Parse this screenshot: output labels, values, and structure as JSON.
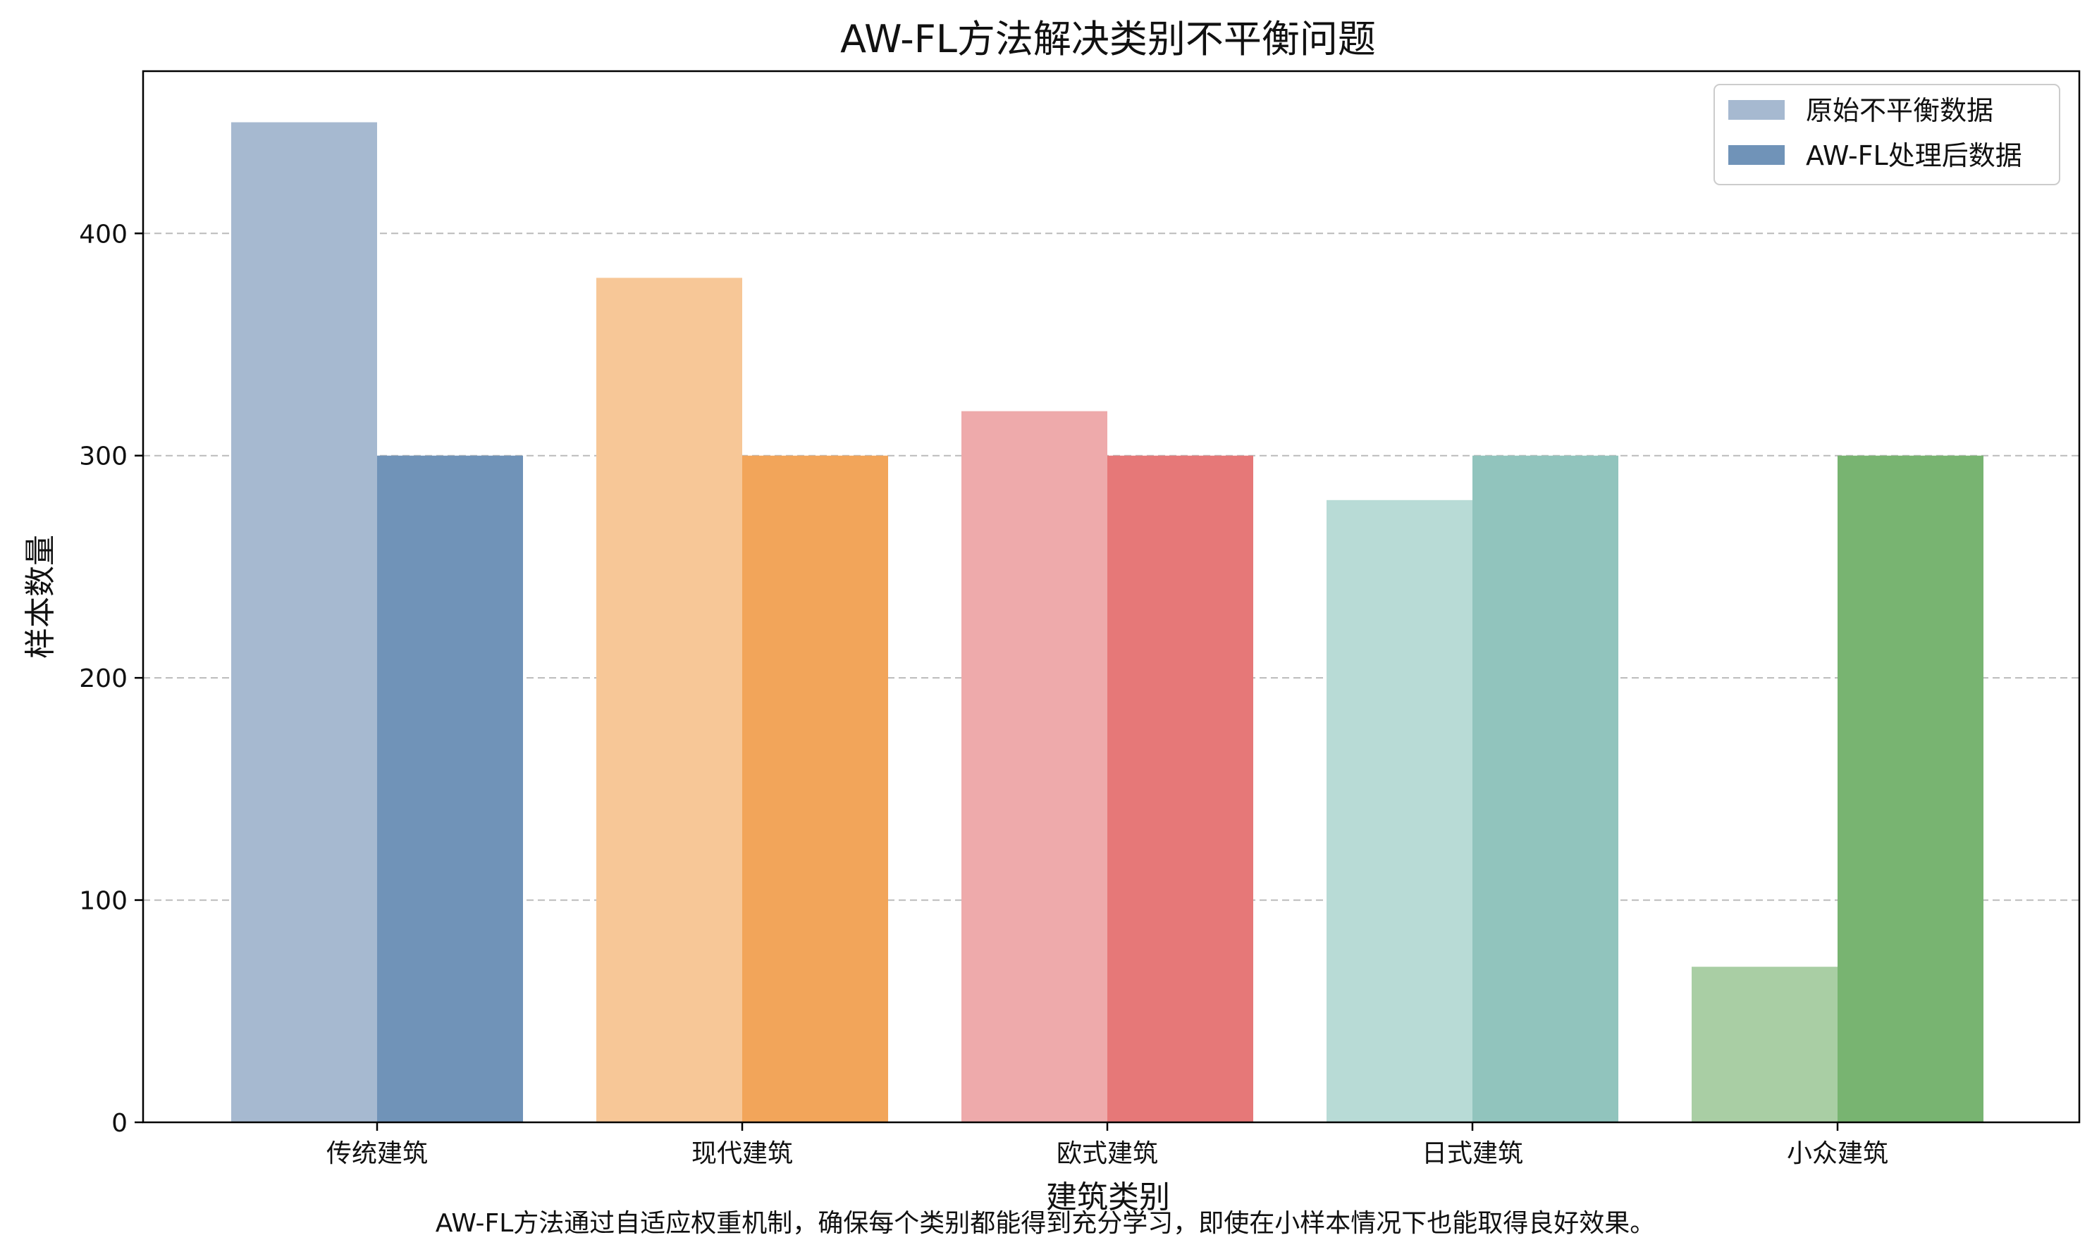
{
  "chart_data": {
    "type": "bar",
    "title": "AW-FL方法解决类别不平衡问题",
    "xlabel": "建筑类别",
    "ylabel": "样本数量",
    "categories": [
      "传统建筑",
      "现代建筑",
      "欧式建筑",
      "日式建筑",
      "小众建筑"
    ],
    "series": [
      {
        "name": "原始不平衡数据",
        "values": [
          450,
          380,
          320,
          280,
          70
        ]
      },
      {
        "name": "AW-FL处理后数据",
        "values": [
          300,
          300,
          300,
          300,
          300
        ]
      }
    ],
    "ylim": [
      0,
      473
    ],
    "yticks": [
      0,
      100,
      200,
      300,
      400
    ],
    "grid": "y-dashed",
    "legend_position": "top-right",
    "category_colors": {
      "original": [
        "#a6b9d0",
        "#f7c797",
        "#eeaaab",
        "#b8dbd6",
        "#a9cea4"
      ],
      "processed": [
        "#7093b8",
        "#f2a55a",
        "#e67878",
        "#91c4bd",
        "#78b471"
      ]
    },
    "legend_colors": [
      "#a6b9d0",
      "#7093b8"
    ]
  },
  "footnote": "AW-FL方法通过自适应权重机制，确保每个类别都能得到充分学习，即使在小样本情况下也能取得良好效果。"
}
